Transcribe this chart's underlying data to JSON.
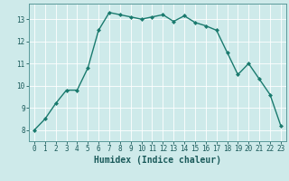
{
  "x": [
    0,
    1,
    2,
    3,
    4,
    5,
    6,
    7,
    8,
    9,
    10,
    11,
    12,
    13,
    14,
    15,
    16,
    17,
    18,
    19,
    20,
    21,
    22,
    23
  ],
  "y": [
    8.0,
    8.5,
    9.2,
    9.8,
    9.8,
    10.8,
    12.5,
    13.3,
    13.2,
    13.1,
    13.0,
    13.1,
    13.2,
    12.9,
    13.15,
    12.85,
    12.7,
    12.5,
    11.5,
    10.5,
    11.0,
    10.3,
    9.6,
    8.2
  ],
  "line_color": "#1a7a6e",
  "marker": "D",
  "marker_size": 2.0,
  "bg_color": "#ceeaea",
  "grid_color": "#ffffff",
  "grid_linewidth": 0.6,
  "xlabel": "Humidex (Indice chaleur)",
  "xlim": [
    -0.5,
    23.5
  ],
  "ylim": [
    7.5,
    13.7
  ],
  "yticks": [
    8,
    9,
    10,
    11,
    12,
    13
  ],
  "xticks": [
    0,
    1,
    2,
    3,
    4,
    5,
    6,
    7,
    8,
    9,
    10,
    11,
    12,
    13,
    14,
    15,
    16,
    17,
    18,
    19,
    20,
    21,
    22,
    23
  ],
  "tick_label_fontsize": 5.5,
  "xlabel_fontsize": 7.0,
  "xlabel_fontweight": "bold",
  "line_width": 1.0
}
